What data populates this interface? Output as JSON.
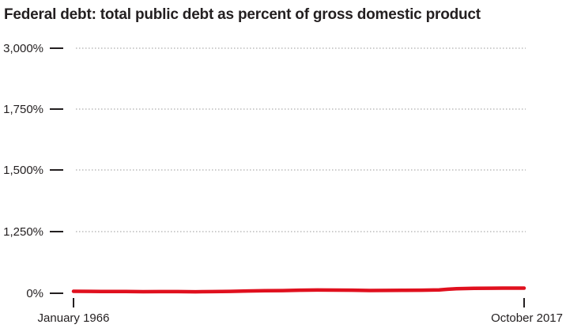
{
  "chart_data": {
    "type": "line",
    "title": "Federal debt: total public debt as percent of gross domestic product",
    "xlabel": "",
    "ylabel": "",
    "x_tick_labels": [
      "January 1966",
      "October 2017"
    ],
    "xlim": [
      1966.0,
      2017.75
    ],
    "y_ticks": [
      0,
      1250,
      1500,
      1750,
      3000
    ],
    "y_tick_labels": [
      "0%",
      "1,250%",
      "1,500%",
      "1,750%",
      "3,000%"
    ],
    "axis_break": "values between 0% and 1,250% are compressed",
    "grid": true,
    "grid_style": "dotted horizontal",
    "line_color": "#e0101e",
    "series": [
      {
        "x": [
          1966,
          1968,
          1970,
          1972,
          1974,
          1976,
          1978,
          1980,
          1982,
          1984,
          1986,
          1988,
          1990,
          1992,
          1994,
          1996,
          1998,
          2000,
          2002,
          2004,
          2006,
          2008,
          2009,
          2010,
          2012,
          2014,
          2016,
          2017.75
        ],
        "values": [
          40,
          38,
          36,
          35,
          32,
          34,
          33,
          31,
          34,
          39,
          47,
          51,
          55,
          62,
          65,
          64,
          63,
          56,
          57,
          61,
          63,
          68,
          82,
          91,
          99,
          102,
          104,
          104
        ]
      }
    ]
  }
}
